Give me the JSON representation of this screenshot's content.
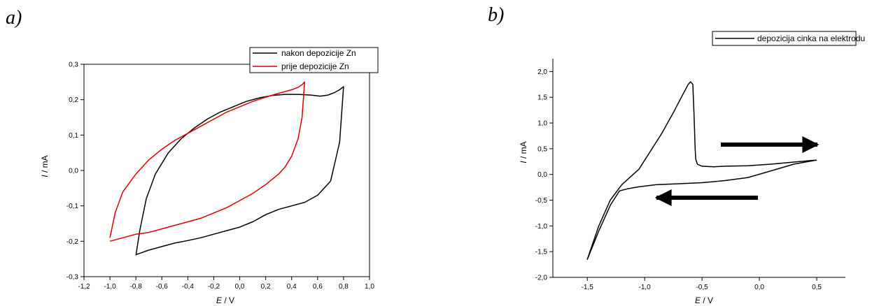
{
  "panels": {
    "a": "a)",
    "b": "b)"
  },
  "chart_data": [
    {
      "type": "line",
      "ylabel_var": "I",
      "ylabel_unit": " / mA",
      "xlabel_var": "E",
      "xlabel_unit": " / V",
      "xlim": [
        -1.2,
        1.0
      ],
      "ylim": [
        -0.3,
        0.3
      ],
      "xticks": [
        -1.2,
        -1.0,
        -0.8,
        -0.6,
        -0.4,
        -0.2,
        0.0,
        0.2,
        0.4,
        0.6,
        0.8,
        1.0
      ],
      "yticks": [
        -0.3,
        -0.2,
        -0.1,
        0.0,
        0.1,
        0.2,
        0.3
      ],
      "x_tick_labels": [
        "-1,2",
        "-1,0",
        "-0,8",
        "-0,6",
        "-0,4",
        "-0,2",
        "0,0",
        "0,2",
        "0,4",
        "0,6",
        "0,8",
        "1,0"
      ],
      "y_tick_labels": [
        "-0,3",
        "-0,2",
        "-0,1",
        "0,0",
        "0,1",
        "0,2",
        "0,3"
      ],
      "legend_position": "top-right",
      "series": [
        {
          "name": "nakon depozicije Zn",
          "color": "#000000",
          "x": [
            -0.8,
            -0.77,
            -0.72,
            -0.65,
            -0.55,
            -0.45,
            -0.35,
            -0.25,
            -0.15,
            -0.05,
            0.05,
            0.15,
            0.25,
            0.35,
            0.45,
            0.55,
            0.62,
            0.68,
            0.73,
            0.77,
            0.79,
            0.8,
            0.77,
            0.7,
            0.6,
            0.5,
            0.4,
            0.3,
            0.2,
            0.1,
            0.0,
            -0.1,
            -0.2,
            -0.3,
            -0.4,
            -0.5,
            -0.6,
            -0.7,
            -0.8
          ],
          "y": [
            -0.24,
            -0.17,
            -0.08,
            -0.01,
            0.05,
            0.09,
            0.12,
            0.145,
            0.165,
            0.18,
            0.195,
            0.205,
            0.212,
            0.215,
            0.215,
            0.213,
            0.21,
            0.213,
            0.22,
            0.228,
            0.234,
            0.237,
            0.08,
            -0.03,
            -0.07,
            -0.09,
            -0.1,
            -0.11,
            -0.125,
            -0.145,
            -0.16,
            -0.17,
            -0.18,
            -0.19,
            -0.198,
            -0.205,
            -0.215,
            -0.225,
            -0.238
          ]
        },
        {
          "name": "prije depozicije Zn",
          "color": "#d90000",
          "x": [
            -1.0,
            -0.96,
            -0.9,
            -0.8,
            -0.7,
            -0.6,
            -0.5,
            -0.4,
            -0.3,
            -0.2,
            -0.1,
            0.0,
            0.1,
            0.2,
            0.3,
            0.4,
            0.45,
            0.48,
            0.5,
            0.48,
            0.45,
            0.4,
            0.35,
            0.3,
            0.2,
            0.1,
            0.0,
            -0.1,
            -0.2,
            -0.3,
            -0.4,
            -0.5,
            -0.6,
            -0.7,
            -0.8,
            -0.9,
            -1.0
          ],
          "y": [
            -0.19,
            -0.12,
            -0.06,
            -0.01,
            0.03,
            0.06,
            0.085,
            0.105,
            0.125,
            0.145,
            0.165,
            0.18,
            0.195,
            0.207,
            0.218,
            0.228,
            0.235,
            0.242,
            0.25,
            0.15,
            0.09,
            0.04,
            0.01,
            -0.01,
            -0.04,
            -0.065,
            -0.085,
            -0.105,
            -0.12,
            -0.135,
            -0.145,
            -0.155,
            -0.165,
            -0.175,
            -0.18,
            -0.19,
            -0.2
          ]
        }
      ]
    },
    {
      "type": "line",
      "ylabel_var": "I",
      "ylabel_unit": " / mA",
      "xlabel_var": "E",
      "xlabel_unit": " / V",
      "xlim": [
        -1.8,
        0.75
      ],
      "ylim": [
        -2.0,
        2.25
      ],
      "xticks": [
        -1.5,
        -1.0,
        -0.5,
        0.0,
        0.5
      ],
      "yticks": [
        -2.0,
        -1.5,
        -1.0,
        -0.5,
        0.0,
        0.5,
        1.0,
        1.5,
        2.0
      ],
      "x_tick_labels": [
        "-1,5",
        "-1,0",
        "-0,5",
        "0,0",
        "0,5"
      ],
      "y_tick_labels": [
        "-2,0",
        "-1,5",
        "-1,0",
        "-0,5",
        "0,0",
        "0,5",
        "1,0",
        "1,5",
        "2,0"
      ],
      "legend_position": "top-right",
      "annotations": [
        "arrow-right",
        "arrow-left"
      ],
      "series": [
        {
          "name": "depozicija cinka na elektrodu",
          "color": "#000000",
          "x": [
            0.5,
            0.3,
            0.1,
            -0.1,
            -0.3,
            -0.5,
            -0.7,
            -0.9,
            -1.05,
            -1.15,
            -1.22,
            -1.3,
            -1.4,
            -1.5,
            -1.4,
            -1.3,
            -1.2,
            -1.1,
            -1.05,
            -0.95,
            -0.85,
            -0.75,
            -0.68,
            -0.62,
            -0.6,
            -0.58,
            -0.57,
            -0.56,
            -0.555,
            -0.54,
            -0.5,
            -0.4,
            -0.3,
            -0.1,
            0.1,
            0.3,
            0.45,
            0.5
          ],
          "y": [
            0.28,
            0.2,
            0.07,
            -0.06,
            -0.12,
            -0.16,
            -0.18,
            -0.2,
            -0.24,
            -0.28,
            -0.32,
            -0.6,
            -1.1,
            -1.65,
            -1.0,
            -0.5,
            -0.2,
            0.0,
            0.1,
            0.45,
            0.8,
            1.2,
            1.5,
            1.75,
            1.8,
            1.75,
            1.2,
            0.5,
            0.3,
            0.2,
            0.16,
            0.15,
            0.16,
            0.17,
            0.2,
            0.24,
            0.27,
            0.28
          ]
        }
      ]
    }
  ]
}
